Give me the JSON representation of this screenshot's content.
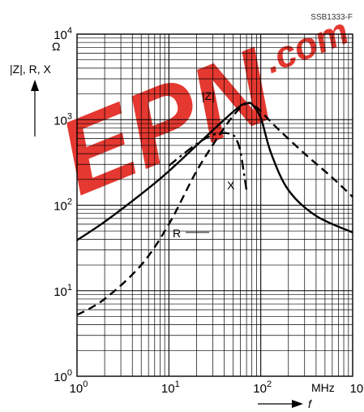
{
  "colors": {
    "watermark": "#e2231a",
    "ink": "#000000"
  },
  "watermark": {
    "text": "EPN",
    "suffix": ".com"
  },
  "figure_code": "SSB1333-F",
  "chart_data": {
    "type": "line",
    "title": "",
    "xlabel": "f",
    "x_unit": "MHz",
    "ylabel": "|Z|, R, X",
    "y_unit": "Ω",
    "xscale": "log",
    "yscale": "log",
    "xlim": [
      1,
      1000
    ],
    "ylim": [
      1,
      10000
    ],
    "grid": true,
    "x_ticks": [
      {
        "base": "10",
        "exp": "0"
      },
      {
        "base": "10",
        "exp": "1"
      },
      {
        "base": "10",
        "exp": "2"
      },
      {
        "base": "10",
        "exp": "3"
      }
    ],
    "y_ticks": [
      {
        "base": "10",
        "exp": "0"
      },
      {
        "base": "10",
        "exp": "1"
      },
      {
        "base": "10",
        "exp": "2"
      },
      {
        "base": "10",
        "exp": "3"
      },
      {
        "base": "10",
        "exp": "4"
      }
    ],
    "series": [
      {
        "name": "|Z|",
        "style": "solid",
        "points": [
          [
            1,
            39
          ],
          [
            2,
            64
          ],
          [
            5,
            135
          ],
          [
            10,
            250
          ],
          [
            20,
            500
          ],
          [
            40,
            1000
          ],
          [
            60,
            1450
          ],
          [
            70,
            1550
          ],
          [
            80,
            1520
          ],
          [
            100,
            1050
          ],
          [
            130,
            400
          ],
          [
            200,
            150
          ],
          [
            400,
            75
          ],
          [
            1000,
            48
          ]
        ]
      },
      {
        "name": "R",
        "style": "dashed",
        "points": [
          [
            1,
            5.2
          ],
          [
            2,
            8
          ],
          [
            5,
            20
          ],
          [
            10,
            60
          ],
          [
            20,
            250
          ],
          [
            40,
            800
          ],
          [
            60,
            1380
          ],
          [
            75,
            1560
          ],
          [
            90,
            1400
          ],
          [
            150,
            800
          ],
          [
            300,
            400
          ],
          [
            600,
            210
          ],
          [
            1000,
            125
          ]
        ]
      },
      {
        "name": "X",
        "style": "dashdot",
        "points": [
          [
            10,
            290
          ],
          [
            20,
            520
          ],
          [
            30,
            660
          ],
          [
            40,
            700
          ],
          [
            50,
            660
          ],
          [
            55,
            570
          ],
          [
            60,
            430
          ],
          [
            65,
            250
          ],
          [
            70,
            150
          ]
        ]
      }
    ]
  }
}
